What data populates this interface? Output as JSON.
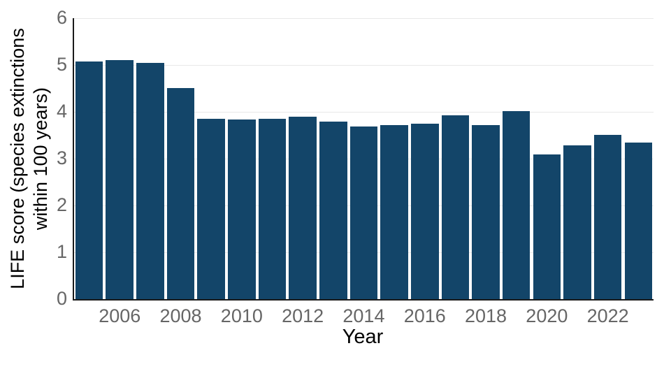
{
  "chart_data": {
    "type": "bar",
    "title": "",
    "xlabel": "Year",
    "ylabel": "LIFE score (species extinctions within 100 years)",
    "ylabel_line1": "LIFE score (species extinctions",
    "ylabel_line2": "within 100 years)",
    "categories": [
      2005,
      2006,
      2007,
      2008,
      2009,
      2010,
      2011,
      2012,
      2013,
      2014,
      2015,
      2016,
      2017,
      2018,
      2019,
      2020,
      2021,
      2022,
      2023
    ],
    "values": [
      5.08,
      5.11,
      5.05,
      4.51,
      3.85,
      3.83,
      3.85,
      3.9,
      3.79,
      3.68,
      3.71,
      3.74,
      3.92,
      3.71,
      4.02,
      3.09,
      3.28,
      3.51,
      3.35
    ],
    "ylim": [
      0,
      6
    ],
    "yticks": [
      0,
      1,
      2,
      3,
      4,
      5,
      6
    ],
    "xticks": [
      2006,
      2008,
      2010,
      2012,
      2014,
      2016,
      2018,
      2020,
      2022
    ],
    "grid": "horizontal gridlines on, behind bars",
    "legend": "none",
    "bar_color": "#134569"
  },
  "colors": {
    "bar": "#134569",
    "grid": "#e8e8e8",
    "axis": "#1a1a1a",
    "tick_label": "#666666",
    "axis_label": "#000000",
    "background": "#ffffff"
  }
}
